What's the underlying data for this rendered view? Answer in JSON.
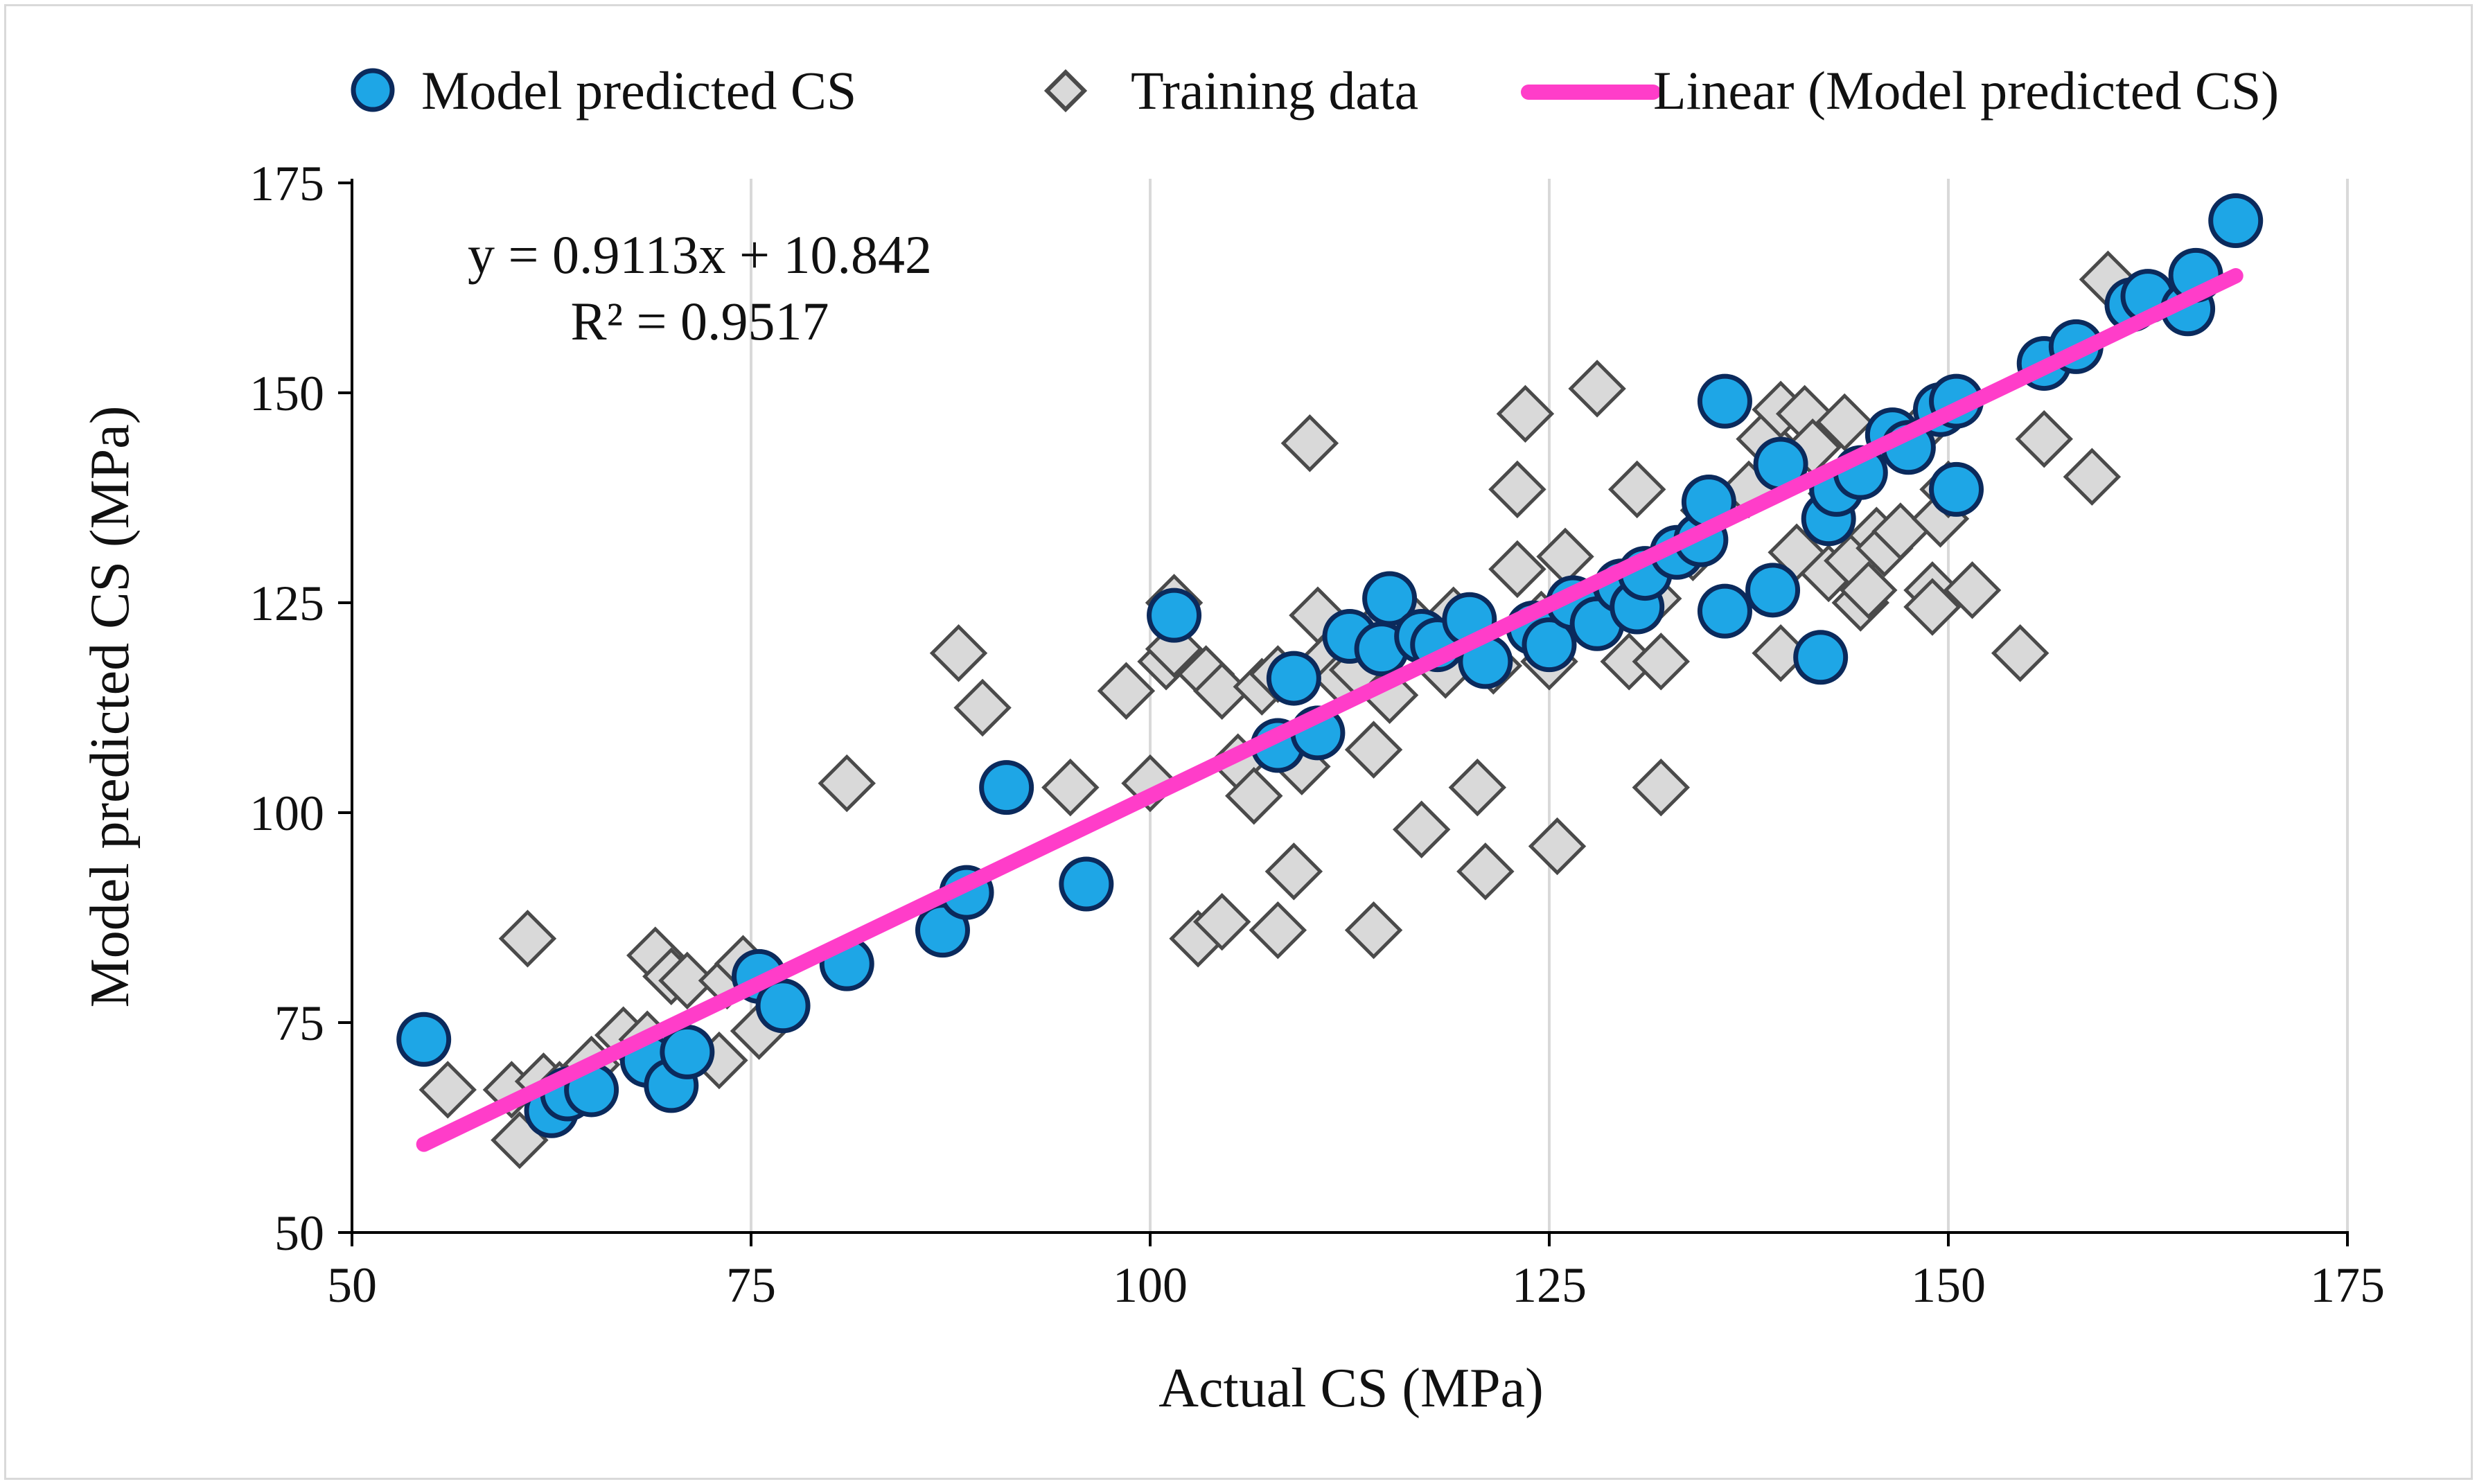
{
  "chart_data": {
    "type": "scatter",
    "title": "",
    "xlabel": "Actual CS (MPa)",
    "ylabel": "Model predicted CS (MPa)",
    "xlim": [
      50,
      175
    ],
    "ylim": [
      50,
      175
    ],
    "x_ticks": [
      50,
      75,
      100,
      125,
      150,
      175
    ],
    "y_ticks": [
      50,
      75,
      100,
      125,
      150,
      175
    ],
    "grid": {
      "vertical": true,
      "horizontal": false
    },
    "legend_position": "top",
    "legend": [
      "Model predicted CS",
      "Training data",
      "Linear (Model predicted CS)"
    ],
    "trendline": {
      "series": "Model predicted CS",
      "slope": 0.9113,
      "intercept": 10.842,
      "x_range": [
        54.5,
        168
      ],
      "equation_label": "y = 0.9113x + 10.842",
      "r2_label": "R² = 0.9517",
      "color": "#ff3dc9"
    },
    "series": [
      {
        "name": "Model predicted CS",
        "marker": "circle",
        "fill": "#1ea6e6",
        "stroke": "#0b2a5c",
        "points": [
          [
            54.5,
            73
          ],
          [
            62.5,
            64.5
          ],
          [
            63.5,
            66.5
          ],
          [
            65,
            67
          ],
          [
            68.5,
            70.5
          ],
          [
            70,
            67.5
          ],
          [
            71,
            71.5
          ],
          [
            75.5,
            80.5
          ],
          [
            77,
            77
          ],
          [
            81,
            82
          ],
          [
            87,
            86
          ],
          [
            88.5,
            90.5
          ],
          [
            91,
            103
          ],
          [
            96,
            91.5
          ],
          [
            101.5,
            123.5
          ],
          [
            108,
            108
          ],
          [
            109,
            116
          ],
          [
            110.5,
            109.5
          ],
          [
            112.5,
            121
          ],
          [
            114.5,
            119.5
          ],
          [
            115,
            125.5
          ],
          [
            117,
            121
          ],
          [
            118,
            120
          ],
          [
            120,
            123
          ],
          [
            121,
            118
          ],
          [
            124,
            122
          ],
          [
            125,
            120
          ],
          [
            126.5,
            125
          ],
          [
            128,
            122.5
          ],
          [
            129.5,
            127
          ],
          [
            130.5,
            124.5
          ],
          [
            131,
            128.5
          ],
          [
            133,
            131
          ],
          [
            134.5,
            132.5
          ],
          [
            135,
            137
          ],
          [
            136,
            149
          ],
          [
            136,
            124
          ],
          [
            139,
            126.5
          ],
          [
            139.5,
            141.5
          ],
          [
            142,
            118.5
          ],
          [
            142.5,
            135
          ],
          [
            143,
            138.5
          ],
          [
            144.5,
            140.5
          ],
          [
            146.5,
            145
          ],
          [
            147.5,
            143.5
          ],
          [
            149.5,
            148
          ],
          [
            150.5,
            149
          ],
          [
            150.5,
            138.5
          ],
          [
            156,
            153.5
          ],
          [
            158,
            155.5
          ],
          [
            161.5,
            160.5
          ],
          [
            162.5,
            161.5
          ],
          [
            165,
            160
          ],
          [
            165.5,
            164
          ],
          [
            168,
            170.5
          ]
        ]
      },
      {
        "name": "Training data",
        "marker": "diamond",
        "fill": "#d9d9d9",
        "stroke": "#4a4a4a",
        "points": [
          [
            56,
            67
          ],
          [
            60,
            67
          ],
          [
            60.5,
            61
          ],
          [
            61,
            85
          ],
          [
            62,
            68
          ],
          [
            63,
            67
          ],
          [
            65,
            70
          ],
          [
            67,
            73.5
          ],
          [
            68.5,
            73
          ],
          [
            69,
            83
          ],
          [
            69.5,
            71
          ],
          [
            70,
            80.5
          ],
          [
            71,
            80
          ],
          [
            73,
            70.5
          ],
          [
            73.5,
            80
          ],
          [
            74.5,
            82
          ],
          [
            75.5,
            74
          ],
          [
            81,
            103.5
          ],
          [
            88,
            119
          ],
          [
            89.5,
            112.5
          ],
          [
            95,
            103
          ],
          [
            98.5,
            114.5
          ],
          [
            100,
            103.5
          ],
          [
            101,
            118
          ],
          [
            101.5,
            119.5
          ],
          [
            101.5,
            125
          ],
          [
            103,
            85
          ],
          [
            103.5,
            116.5
          ],
          [
            104.5,
            87
          ],
          [
            104.5,
            114.5
          ],
          [
            105.5,
            106
          ],
          [
            106.5,
            102
          ],
          [
            107,
            115
          ],
          [
            108,
            86
          ],
          [
            108,
            116.5
          ],
          [
            109,
            93
          ],
          [
            109.5,
            105.5
          ],
          [
            110,
            144
          ],
          [
            110.5,
            123.5
          ],
          [
            111,
            118
          ],
          [
            112,
            116
          ],
          [
            113,
            117
          ],
          [
            114,
            86
          ],
          [
            114,
            107.5
          ],
          [
            114.5,
            122.5
          ],
          [
            115,
            114
          ],
          [
            116,
            123.5
          ],
          [
            117,
            98
          ],
          [
            118.5,
            117
          ],
          [
            119,
            123.5
          ],
          [
            120.5,
            103
          ],
          [
            121,
            93
          ],
          [
            121.5,
            117.5
          ],
          [
            123,
            129
          ],
          [
            123,
            138.5
          ],
          [
            123.5,
            147.5
          ],
          [
            124.5,
            123
          ],
          [
            125,
            118
          ],
          [
            125.5,
            96
          ],
          [
            126,
            130.5
          ],
          [
            128,
            150.5
          ],
          [
            130,
            118
          ],
          [
            130.5,
            125
          ],
          [
            130.5,
            138.5
          ],
          [
            131.5,
            125.5
          ],
          [
            132,
            103
          ],
          [
            132,
            118
          ],
          [
            134,
            131
          ],
          [
            135,
            136
          ],
          [
            137.5,
            138.5
          ],
          [
            138.5,
            144.5
          ],
          [
            139.5,
            148
          ],
          [
            139.5,
            119
          ],
          [
            140.5,
            131
          ],
          [
            141,
            147.5
          ],
          [
            141.5,
            143.5
          ],
          [
            142.5,
            128.5
          ],
          [
            143,
            138
          ],
          [
            143.5,
            146.5
          ],
          [
            144,
            130
          ],
          [
            144.5,
            125
          ],
          [
            145,
            126.5
          ],
          [
            145.5,
            133
          ],
          [
            146,
            131.5
          ],
          [
            147,
            133.5
          ],
          [
            148,
            145
          ],
          [
            149,
            126.5
          ],
          [
            149,
            124.5
          ],
          [
            149.5,
            135
          ],
          [
            150,
            138.5
          ],
          [
            151.5,
            126.5
          ],
          [
            154.5,
            119
          ],
          [
            156,
            144.5
          ],
          [
            159,
            140
          ],
          [
            160,
            163.5
          ]
        ]
      }
    ]
  }
}
